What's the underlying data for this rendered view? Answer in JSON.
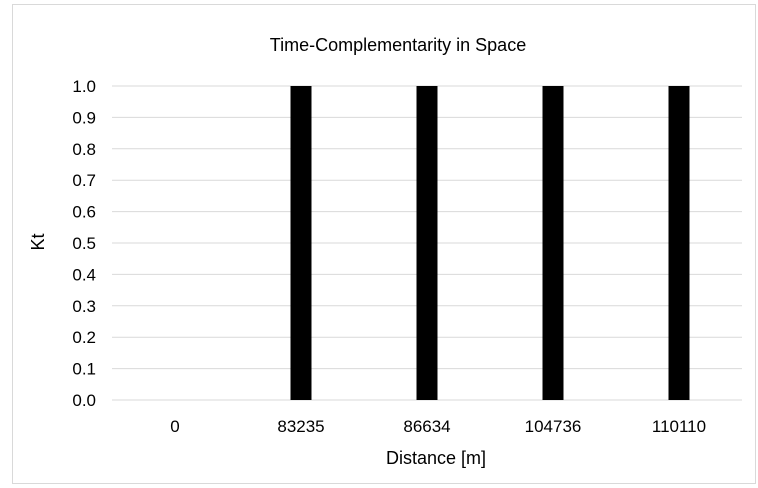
{
  "chart_data": {
    "type": "bar",
    "title": "Time-Complementarity in Space",
    "xlabel": "Distance [m]",
    "ylabel": "Kt",
    "categories": [
      "0",
      "83235",
      "86634",
      "104736",
      "110110"
    ],
    "values": [
      0,
      1,
      1,
      1,
      1
    ],
    "ylim": [
      0,
      1
    ],
    "yticks": [
      "0.0",
      "0.1",
      "0.2",
      "0.3",
      "0.4",
      "0.5",
      "0.6",
      "0.7",
      "0.8",
      "0.9",
      "1.0"
    ],
    "grid": true,
    "legend": "none",
    "bar_color": "#000000"
  }
}
